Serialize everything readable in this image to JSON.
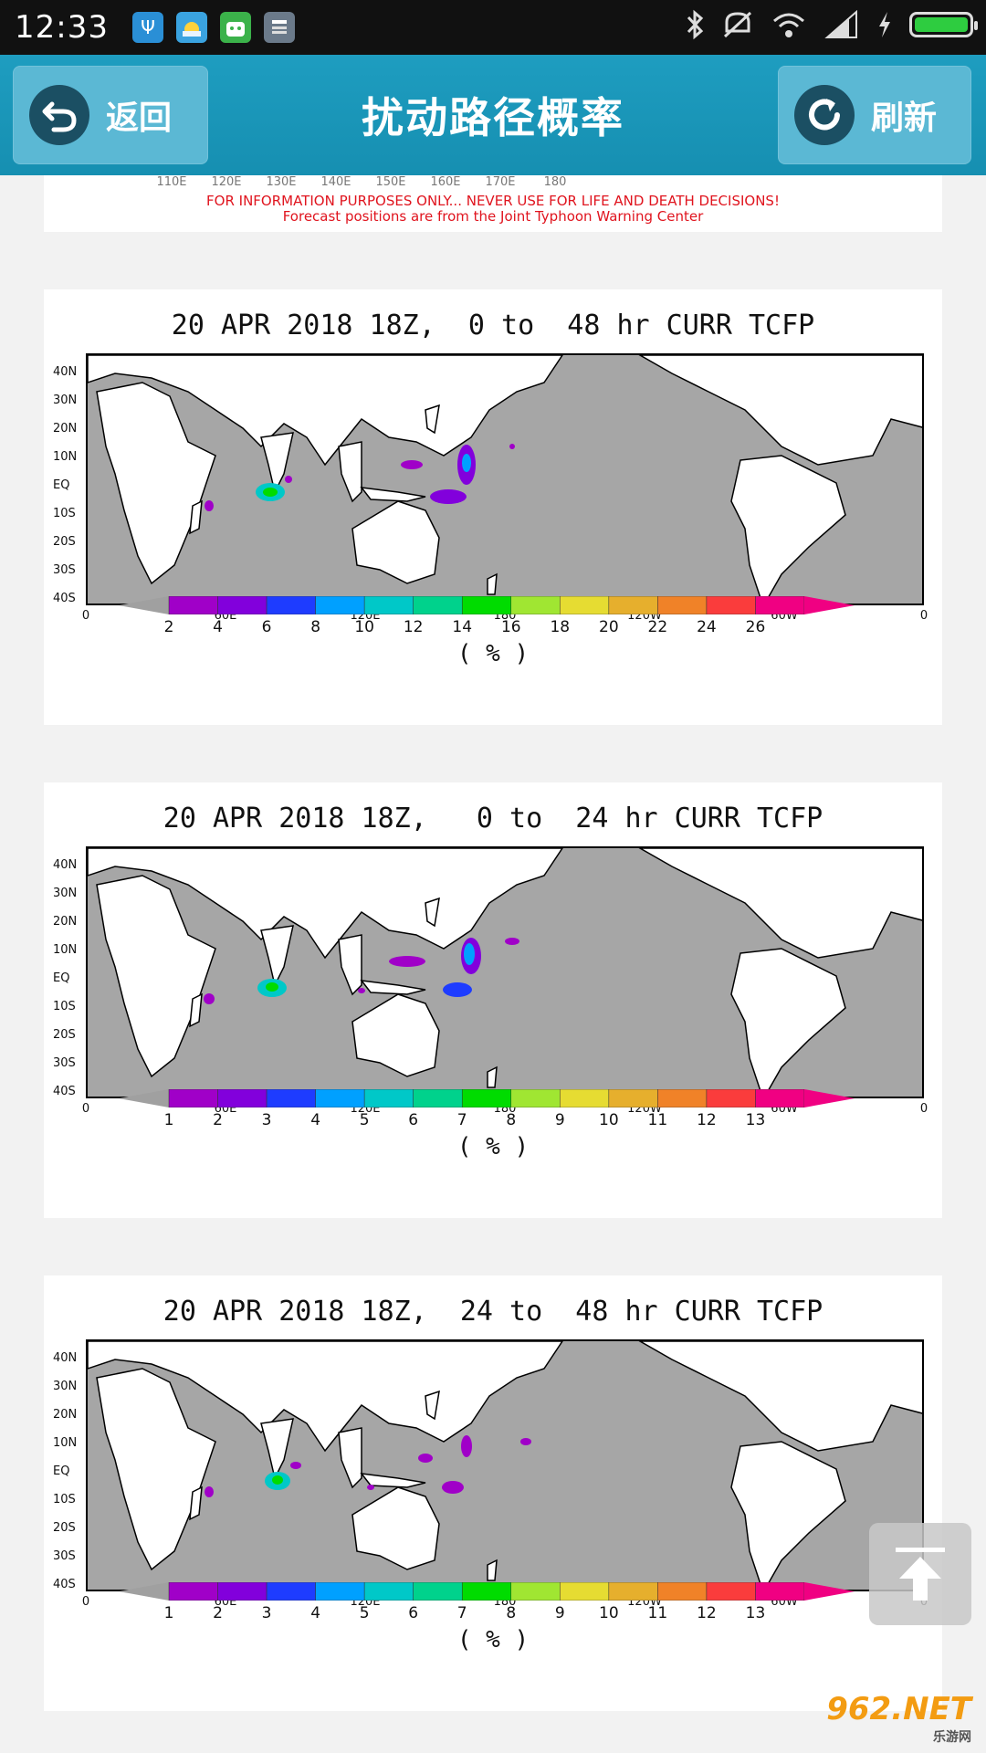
{
  "status_bar": {
    "time": "12:33",
    "left_icons": [
      "usb-icon",
      "weather-app-icon",
      "android-app-icon",
      "notes-app-icon"
    ],
    "right_icons": [
      "bluetooth-icon",
      "mute-icon",
      "wifi-icon",
      "signal-icon",
      "charging-icon",
      "battery-icon"
    ]
  },
  "header": {
    "back_label": "返回",
    "title": "扰动路径概率",
    "refresh_label": "刷新",
    "color": "#1a96b8"
  },
  "partial_card": {
    "lon_labels": [
      "110E",
      "120E",
      "130E",
      "140E",
      "150E",
      "160E",
      "170E",
      "180"
    ],
    "disclaimer": "FOR INFORMATION PURPOSES ONLY... NEVER USE FOR LIFE AND DEATH DECISIONS!",
    "source": "Forecast positions are from the Joint Typhoon Warning Center"
  },
  "maps": [
    {
      "title": "20 APR 2018 18Z,  0 to  48 hr CURR TCFP",
      "colorbar_labels": [
        "2",
        "4",
        "6",
        "8",
        "10",
        "12",
        "14",
        "16",
        "18",
        "20",
        "22",
        "24",
        "26"
      ],
      "unit": "( % )"
    },
    {
      "title": "20 APR 2018 18Z,   0 to  24 hr CURR TCFP",
      "colorbar_labels": [
        "1",
        "2",
        "3",
        "4",
        "5",
        "6",
        "7",
        "8",
        "9",
        "10",
        "11",
        "12",
        "13"
      ],
      "unit": "( % )"
    },
    {
      "title": "20 APR 2018 18Z,  24 to  48 hr CURR TCFP",
      "colorbar_labels": [
        "1",
        "2",
        "3",
        "4",
        "5",
        "6",
        "7",
        "8",
        "9",
        "10",
        "11",
        "12",
        "13"
      ],
      "unit": "( % )"
    }
  ],
  "lat_labels": [
    "40N",
    "30N",
    "20N",
    "10N",
    "EQ",
    "10S",
    "20S",
    "30S",
    "40S"
  ],
  "lon_labels": [
    "0",
    "60E",
    "120E",
    "180",
    "120W",
    "60W",
    "0"
  ],
  "colorbar_colors": [
    "#a000c8",
    "#8200dc",
    "#1e3cff",
    "#00a0ff",
    "#00c8c8",
    "#00d28c",
    "#00dc00",
    "#a0e632",
    "#e6dc32",
    "#e6af2d",
    "#f08228",
    "#fa3c3c",
    "#f00082"
  ],
  "watermark": {
    "brand": "962.NET",
    "sub": "乐游网"
  }
}
